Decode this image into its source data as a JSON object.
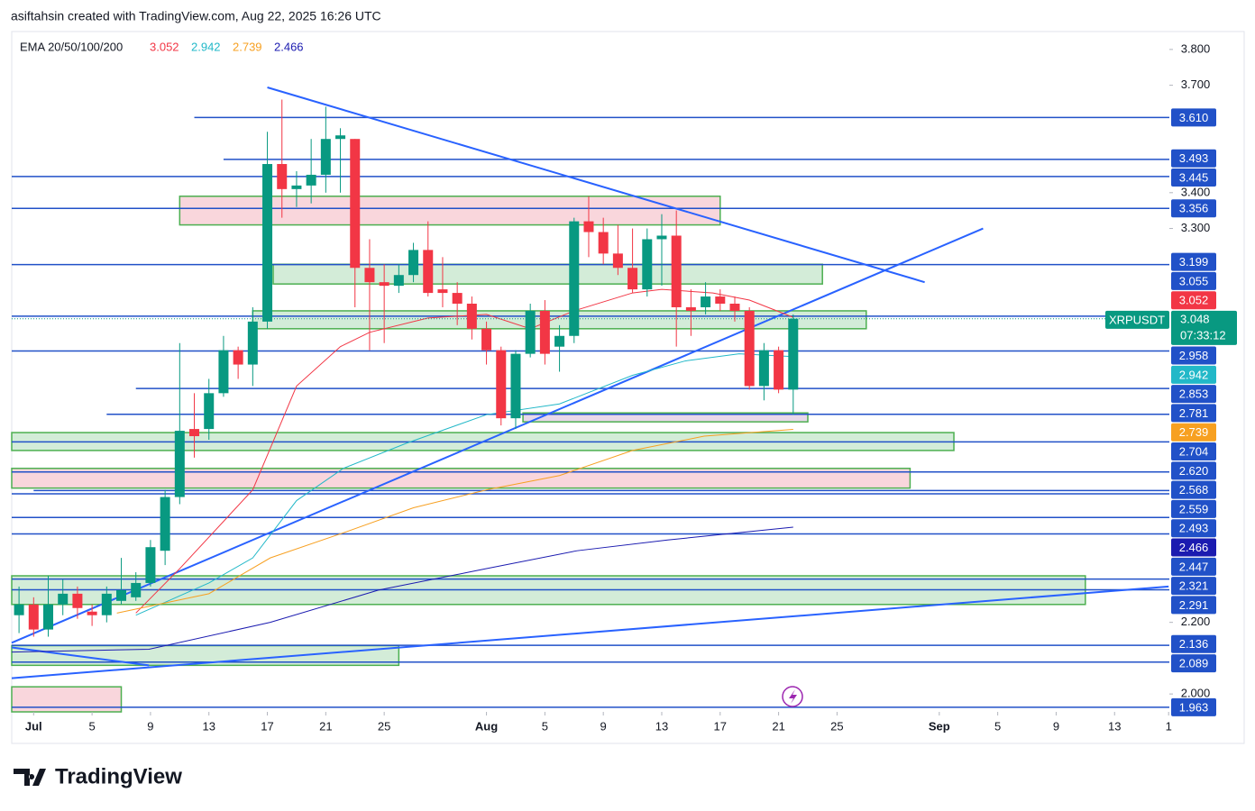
{
  "header": "asiftahsin created with TradingView.com, Aug 22, 2025 16:26 UTC",
  "logo": "TradingView",
  "chart_data": {
    "type": "candlestick",
    "symbol": "XRPUSDT",
    "countdown": "07:33:12",
    "indicator": "EMA 20/50/100/200",
    "up_color": "#089981",
    "down_color": "#f23645",
    "xlim": [
      -1.5,
      77.75
    ],
    "ylim": [
      1.95,
      3.85
    ],
    "xticks": [
      {
        "value": 0,
        "label": "Jul"
      },
      {
        "value": 4,
        "label": "5"
      },
      {
        "value": 8,
        "label": "9"
      },
      {
        "value": 12,
        "label": "13"
      },
      {
        "value": 16,
        "label": "17"
      },
      {
        "value": 20,
        "label": "21"
      },
      {
        "value": 24,
        "label": "25"
      },
      {
        "value": 31,
        "label": "Aug"
      },
      {
        "value": 35,
        "label": "5"
      },
      {
        "value": 39,
        "label": "9"
      },
      {
        "value": 43,
        "label": "13"
      },
      {
        "value": 47,
        "label": "17"
      },
      {
        "value": 51,
        "label": "21"
      },
      {
        "value": 55,
        "label": "25"
      },
      {
        "value": 62,
        "label": "Sep"
      },
      {
        "value": 66,
        "label": "5"
      },
      {
        "value": 70,
        "label": "9"
      },
      {
        "value": 74,
        "label": "13"
      },
      {
        "value": 77.7,
        "label": "1"
      }
    ],
    "yticks": [
      {
        "value": 3.8,
        "label": "3.800"
      },
      {
        "value": 3.7,
        "label": "3.700"
      },
      {
        "value": 3.4,
        "label": "3.400"
      },
      {
        "value": 3.3,
        "label": "3.300"
      },
      {
        "value": 2.2,
        "label": "2.200"
      },
      {
        "value": 2.0,
        "label": "2.000"
      }
    ],
    "candles": {
      "x": [
        -1,
        0,
        1,
        2,
        3,
        4,
        5,
        6,
        7,
        8,
        9,
        10,
        11,
        12,
        13,
        14,
        15,
        16,
        17,
        18,
        19,
        20,
        21,
        22,
        23,
        24,
        25,
        26,
        27,
        28,
        29,
        30,
        31,
        32,
        33,
        34,
        35,
        36,
        37,
        38,
        39,
        40,
        41,
        42,
        43,
        44,
        45,
        46,
        47,
        48,
        49,
        50,
        51,
        52
      ],
      "open": [
        2.22,
        2.25,
        2.18,
        2.25,
        2.28,
        2.23,
        2.22,
        2.26,
        2.27,
        2.31,
        2.4,
        2.55,
        2.74,
        2.74,
        2.84,
        2.96,
        2.92,
        3.04,
        3.48,
        3.41,
        3.42,
        3.45,
        3.55,
        3.55,
        3.19,
        3.15,
        3.14,
        3.17,
        3.24,
        3.13,
        3.12,
        3.09,
        3.02,
        2.96,
        2.77,
        2.95,
        3.07,
        2.97,
        3.0,
        3.32,
        3.29,
        3.23,
        3.19,
        3.13,
        3.27,
        3.28,
        3.08,
        3.08,
        3.11,
        3.09,
        3.07,
        2.86,
        2.96,
        2.85
      ],
      "high": [
        2.3,
        2.27,
        2.33,
        2.32,
        2.3,
        2.25,
        2.3,
        2.38,
        2.34,
        2.43,
        2.57,
        2.98,
        2.84,
        2.88,
        3.0,
        2.97,
        3.08,
        3.57,
        3.66,
        3.46,
        3.55,
        3.64,
        3.58,
        3.55,
        3.27,
        3.2,
        3.2,
        3.26,
        3.32,
        3.22,
        3.15,
        3.11,
        3.04,
        2.97,
        2.96,
        3.09,
        3.1,
        3.03,
        3.33,
        3.39,
        3.33,
        3.31,
        3.3,
        3.3,
        3.34,
        3.35,
        3.13,
        3.15,
        3.13,
        3.11,
        3.08,
        2.98,
        2.97,
        3.06
      ],
      "low": [
        2.17,
        2.16,
        2.16,
        2.22,
        2.21,
        2.19,
        2.2,
        2.25,
        2.26,
        2.3,
        2.36,
        2.53,
        2.66,
        2.71,
        2.83,
        2.88,
        2.86,
        3.02,
        3.33,
        3.36,
        3.37,
        3.4,
        3.4,
        3.08,
        2.96,
        2.98,
        3.12,
        3.15,
        3.11,
        3.08,
        3.03,
        2.99,
        2.92,
        2.75,
        2.74,
        2.94,
        2.92,
        2.9,
        2.98,
        3.22,
        3.2,
        3.17,
        3.12,
        3.11,
        3.14,
        2.97,
        3.0,
        3.06,
        3.07,
        3.04,
        2.85,
        2.82,
        2.84,
        2.78
      ],
      "close": [
        2.25,
        2.18,
        2.25,
        2.28,
        2.24,
        2.22,
        2.28,
        2.29,
        2.31,
        2.41,
        2.55,
        2.735,
        2.72,
        2.84,
        2.96,
        2.92,
        3.04,
        3.48,
        3.41,
        3.42,
        3.45,
        3.55,
        3.56,
        3.19,
        3.15,
        3.14,
        3.17,
        3.24,
        3.12,
        3.12,
        3.09,
        3.02,
        2.96,
        2.77,
        2.95,
        3.07,
        2.95,
        3.0,
        3.32,
        3.29,
        3.23,
        3.19,
        3.13,
        3.27,
        3.28,
        3.08,
        3.07,
        3.11,
        3.09,
        3.07,
        2.86,
        2.96,
        2.85,
        3.048
      ]
    },
    "series": [
      {
        "color": "#f23645",
        "x": [
          7,
          10,
          15,
          18,
          21,
          23,
          27,
          31,
          34,
          37,
          41,
          43,
          46.5,
          49,
          52
        ],
        "values": [
          2.226,
          2.35,
          2.57,
          2.86,
          2.97,
          3.01,
          3.05,
          3.06,
          3.02,
          3.07,
          3.12,
          3.13,
          3.12,
          3.1,
          3.052
        ]
      },
      {
        "color": "#22b8c8",
        "x": [
          7,
          12,
          15,
          18,
          21.2,
          25.5,
          31,
          36,
          41,
          44.6,
          48.3,
          52
        ],
        "values": [
          2.22,
          2.31,
          2.38,
          2.54,
          2.63,
          2.7,
          2.78,
          2.81,
          2.89,
          2.93,
          2.95,
          2.942
        ]
      },
      {
        "color": "#f7a021",
        "x": [
          5.7,
          12,
          16.2,
          21.2,
          26,
          31,
          36,
          41,
          45.9,
          52
        ],
        "values": [
          2.226,
          2.28,
          2.38,
          2.45,
          2.52,
          2.57,
          2.61,
          2.68,
          2.72,
          2.739
        ]
      },
      {
        "color": "#1b1bb0",
        "x": [
          -1.5,
          7.9,
          16.2,
          23.6,
          31,
          37.2,
          43.4,
          52
        ],
        "values": [
          2.117,
          2.125,
          2.2,
          2.29,
          2.35,
          2.4,
          2.43,
          2.466
        ]
      }
    ],
    "level_color": "#2151c8",
    "levels": [
      {
        "price": 3.61,
        "label": "3.610",
        "start": 11
      },
      {
        "price": 3.493,
        "label": "3.493",
        "start": 13
      },
      {
        "price": 3.445,
        "label": "3.445",
        "start": -1.5
      },
      {
        "price": 3.356,
        "label": "3.356",
        "start": -1.5
      },
      {
        "price": 3.199,
        "label": "3.199",
        "start": -1.5
      },
      {
        "price": 3.055,
        "label": "3.055",
        "start": -1.5
      },
      {
        "price": 2.958,
        "label": "2.958",
        "start": -1.5
      },
      {
        "price": 2.853,
        "label": "2.853",
        "start": 7
      },
      {
        "price": 2.781,
        "label": "2.781",
        "start": 5
      },
      {
        "price": 2.704,
        "label": "2.704",
        "start": -1.5
      },
      {
        "price": 2.62,
        "label": "2.620",
        "start": -1.5
      },
      {
        "price": 2.568,
        "label": "2.568",
        "start": 0
      },
      {
        "price": 2.559,
        "label": "2.559",
        "start": -1.5
      },
      {
        "price": 2.493,
        "label": "2.493",
        "start": -1.5
      },
      {
        "price": 2.447,
        "label": "2.447",
        "start": -1.5
      },
      {
        "price": 2.321,
        "label": "2.321",
        "start": -1.5
      },
      {
        "price": 2.291,
        "label": "2.291",
        "start": -1.5
      },
      {
        "price": 2.136,
        "label": "2.136",
        "start": -1.5
      },
      {
        "price": 2.089,
        "label": "2.089",
        "start": -1.5
      },
      {
        "price": 1.963,
        "label": "1.963",
        "start": -1.5
      }
    ],
    "zones": [
      {
        "top": 3.39,
        "bottom": 3.31,
        "start": 10,
        "end": 47,
        "color": "#f9d6dc"
      },
      {
        "top": 3.2,
        "bottom": 3.145,
        "start": 16.4,
        "end": 54,
        "color": "#d3ecd8"
      },
      {
        "top": 3.07,
        "bottom": 3.02,
        "start": 15,
        "end": 57,
        "color": "#d3ecd8"
      },
      {
        "top": 2.785,
        "bottom": 2.76,
        "start": 33.5,
        "end": 53,
        "color": "#e8d8ea"
      },
      {
        "top": 2.73,
        "bottom": 2.68,
        "start": -1.5,
        "end": 63,
        "color": "#d3ecd8"
      },
      {
        "top": 2.63,
        "bottom": 2.575,
        "start": -1.5,
        "end": 60,
        "color": "#f9d6dc"
      },
      {
        "top": 2.33,
        "bottom": 2.25,
        "start": -1.5,
        "end": 72,
        "color": "#d3ecd8"
      },
      {
        "top": 2.135,
        "bottom": 2.08,
        "start": -1.5,
        "end": 25,
        "color": "#d3ecd8"
      },
      {
        "top": 2.02,
        "bottom": 1.95,
        "start": -1.5,
        "end": 6,
        "color": "#f9d6dc"
      }
    ],
    "trendlines": [
      {
        "x": [
          16,
          61
        ],
        "values": [
          3.694,
          3.15
        ]
      },
      {
        "x": [
          -1.5,
          65
        ],
        "values": [
          2.143,
          3.3
        ]
      },
      {
        "x": [
          -1.5,
          77.7
        ],
        "values": [
          2.044,
          2.3
        ]
      },
      {
        "x": [
          -1.5,
          7.9
        ],
        "values": [
          2.13,
          2.08
        ]
      }
    ]
  }
}
